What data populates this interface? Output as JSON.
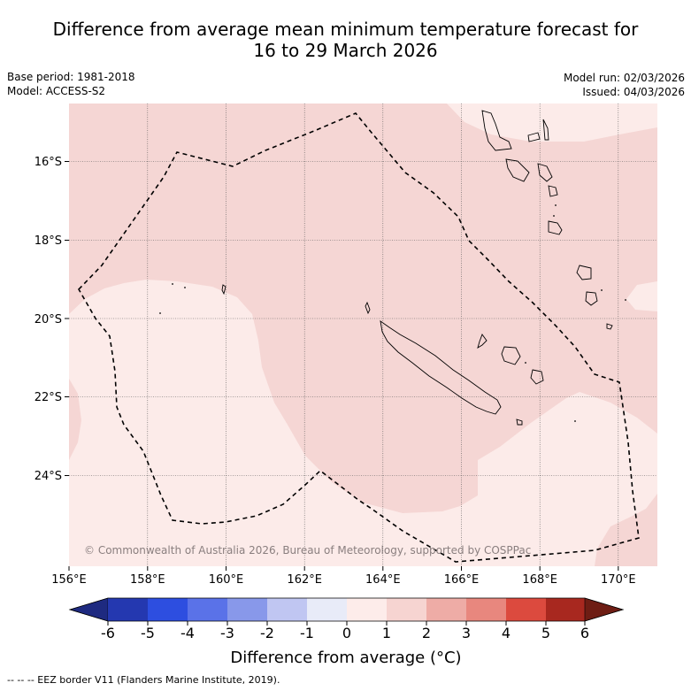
{
  "header": {
    "title_line1": "Difference from average mean minimum temperature forecast for",
    "title_line2": "16 to 29 March 2026",
    "base_period": "Base period: 1981-2018",
    "model": "Model: ACCESS-S2",
    "model_run": "Model run: 02/03/2026",
    "issued": "Issued: 04/03/2026"
  },
  "map": {
    "lon_labels": [
      "156°E",
      "158°E",
      "160°E",
      "162°E",
      "164°E",
      "166°E",
      "168°E",
      "170°E"
    ],
    "lat_labels": [
      "16°S",
      "18°S",
      "20°S",
      "22°S",
      "24°S"
    ],
    "copyright": "© Commonwealth of Australia 2026, Bureau of Meteorology, supported by COSPPac",
    "colors": {
      "anomaly_0_to_1": "#fcebe9",
      "anomaly_1_to_2": "#f5d6d4",
      "coastline": "#000000",
      "eez_border": "#000000"
    }
  },
  "colorbar": {
    "ticks": [
      "-6",
      "-5",
      "-4",
      "-3",
      "-2",
      "-1",
      "0",
      "1",
      "2",
      "3",
      "4",
      "5",
      "6"
    ],
    "colors": [
      "#1e2a80",
      "#2438b0",
      "#2d4ee0",
      "#5a72e8",
      "#8898ea",
      "#c0c6f2",
      "#e8ebf8",
      "#fdecea",
      "#f6d4d1",
      "#eeaca6",
      "#e8877e",
      "#dc4a3e",
      "#a8281f",
      "#6e1d14"
    ],
    "title": "Difference from average (°C)"
  },
  "footnote": "--  --  -- EEZ border V11 (Flanders Marine Institute, 2019)."
}
